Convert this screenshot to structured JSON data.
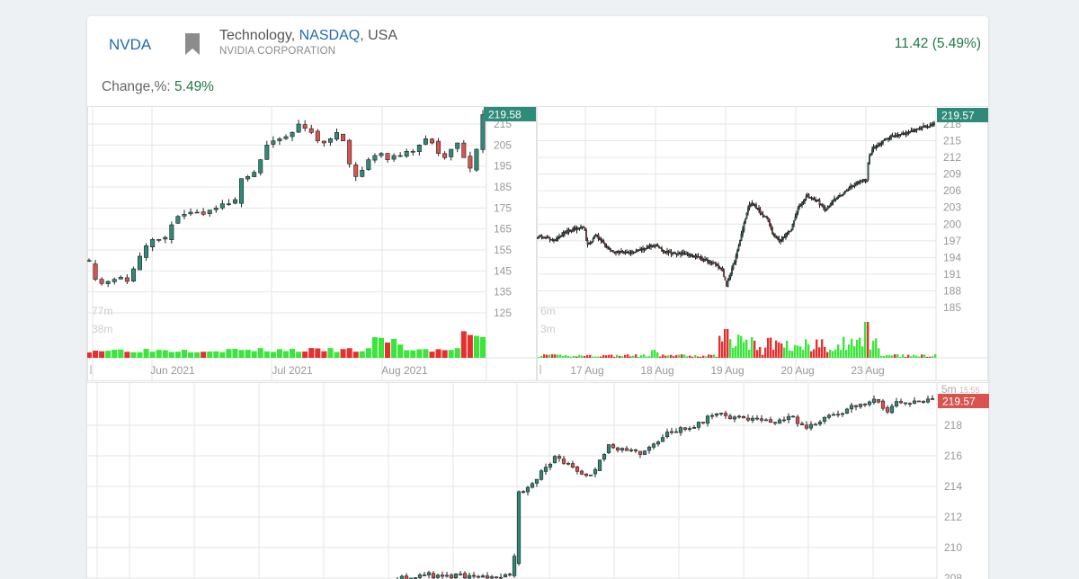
{
  "header": {
    "ticker": "NVDA",
    "sector": "Technology",
    "exchange": "NASDAQ",
    "country": "USA",
    "company": "NVIDIA CORPORATION",
    "price_change": "11.42",
    "price_change_pct": "(5.49%)",
    "change_label": "Change,%:",
    "change_value": "5.49%"
  },
  "colors": {
    "up": "#2e8b79",
    "down": "#d9534f",
    "vol_up": "#39e639",
    "vol_down": "#e63030",
    "positive_text": "#1e7a4a",
    "link": "#1f6bb4"
  },
  "chart_data": [
    {
      "type": "candlestick",
      "name": "daily",
      "price_ticks": [
        "215",
        "205",
        "195",
        "185",
        "175",
        "165",
        "155",
        "145",
        "135",
        "125"
      ],
      "ylim": [
        125,
        219.58
      ],
      "last_price_label": "219.58",
      "volume_ticks": [
        "77m",
        "38m"
      ],
      "x_ticks": [
        "Jun 2021",
        "Jul 2021",
        "Aug 2021"
      ],
      "ohlc_close": [
        150,
        141,
        139,
        140,
        141,
        142,
        140,
        146,
        152,
        157,
        160,
        160,
        161,
        167,
        171,
        172,
        173,
        173,
        172,
        174,
        175,
        177,
        177,
        179,
        189,
        190,
        192,
        198,
        205,
        207,
        208,
        209,
        211,
        215,
        213,
        211,
        207,
        206,
        208,
        211,
        207,
        196,
        190,
        193,
        198,
        200,
        201,
        198,
        200,
        200,
        202,
        202,
        205,
        208,
        206,
        201,
        199,
        203,
        206,
        199,
        194,
        203,
        219.5
      ]
    },
    {
      "type": "candlestick",
      "name": "intraday-5day",
      "price_ticks": [
        "218",
        "215",
        "212",
        "209",
        "206",
        "203",
        "200",
        "197",
        "194",
        "191",
        "188",
        "185"
      ],
      "ylim": [
        185,
        219.57
      ],
      "last_price_label": "219.57",
      "volume_ticks": [
        "6m",
        "3m"
      ],
      "x_ticks": [
        "17 Aug",
        "18 Aug",
        "19 Aug",
        "20 Aug",
        "23 Aug"
      ]
    },
    {
      "type": "candlestick",
      "name": "intraday-5m",
      "interval_label": "5m",
      "time_label": "15:55",
      "price_ticks": [
        "218",
        "216",
        "214",
        "212",
        "210",
        "208"
      ],
      "ylim": [
        207.8,
        219.8
      ],
      "last_price_label": "219.57"
    }
  ]
}
